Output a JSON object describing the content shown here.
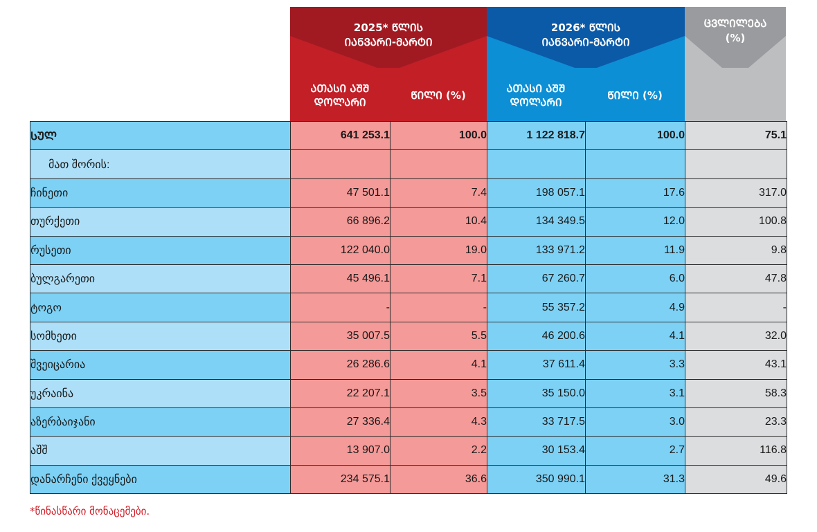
{
  "colors": {
    "red_header": "#c21f27",
    "red_header_dark": "#a11a22",
    "blue_header": "#0d8fd6",
    "blue_header_dark": "#0a5aa8",
    "grey_header": "#bdbec0",
    "grey_header_dark": "#9a9b9e",
    "footnote": "#d0202a"
  },
  "header": {
    "period_2025": [
      "2025* ᲬᲚᲘᲡ",
      "ᲘᲐᲜᲕᲐᲠᲘ-ᲛᲐᲠᲢᲘ"
    ],
    "period_2026": [
      "2026* ᲬᲚᲘᲡ",
      "ᲘᲐᲜᲕᲐᲠᲘ-ᲛᲐᲠᲢᲘ"
    ],
    "change": [
      "ᲪᲕᲚᲘᲚᲔᲑᲐ",
      "(%)"
    ],
    "value_col": [
      "ᲐᲗᲐᲡᲘ ᲐᲨᲨ",
      "ᲓᲝᲚᲐᲠᲘ"
    ],
    "share_col": "ᲬᲘᲚᲘ (%)"
  },
  "rows": [
    {
      "label": "ᲡᲣᲚ",
      "v2025": "641 253.1",
      "s2025": "100.0",
      "v2026": "1 122 818.7",
      "s2026": "100.0",
      "change": "75.1"
    },
    {
      "label": "მათ შორის:",
      "v2025": "",
      "s2025": "",
      "v2026": "",
      "s2026": "",
      "change": ""
    },
    {
      "label": "ჩინეთი",
      "v2025": "47 501.1",
      "s2025": "7.4",
      "v2026": "198 057.1",
      "s2026": "17.6",
      "change": "317.0"
    },
    {
      "label": "თურქეთი",
      "v2025": "66 896.2",
      "s2025": "10.4",
      "v2026": "134 349.5",
      "s2026": "12.0",
      "change": "100.8"
    },
    {
      "label": "რუსეთი",
      "v2025": "122 040.0",
      "s2025": "19.0",
      "v2026": "133 971.2",
      "s2026": "11.9",
      "change": "9.8"
    },
    {
      "label": "ბულგარეთი",
      "v2025": "45 496.1",
      "s2025": "7.1",
      "v2026": "67 260.7",
      "s2026": "6.0",
      "change": "47.8"
    },
    {
      "label": "ტოგო",
      "v2025": "-",
      "s2025": "-",
      "v2026": "55 357.2",
      "s2026": "4.9",
      "change": "-"
    },
    {
      "label": "სომხეთი",
      "v2025": "35 007.5",
      "s2025": "5.5",
      "v2026": "46 200.6",
      "s2026": "4.1",
      "change": "32.0"
    },
    {
      "label": "შვეიცარია",
      "v2025": "26 286.6",
      "s2025": "4.1",
      "v2026": "37 611.4",
      "s2026": "3.3",
      "change": "43.1"
    },
    {
      "label": "უკრაინა",
      "v2025": "22 207.1",
      "s2025": "3.5",
      "v2026": "35 150.0",
      "s2026": "3.1",
      "change": "58.3"
    },
    {
      "label": "აზერბაიჯანი",
      "v2025": "27 336.4",
      "s2025": "4.3",
      "v2026": "33 717.5",
      "s2026": "3.0",
      "change": "23.3"
    },
    {
      "label": "აშშ",
      "v2025": "13 907.0",
      "s2025": "2.2",
      "v2026": "30 153.4",
      "s2026": "2.7",
      "change": "116.8"
    },
    {
      "label": "დანარჩენი ქვეყნები",
      "v2025": "234 575.1",
      "s2025": "36.6",
      "v2026": "350 990.1",
      "s2026": "31.3",
      "change": "49.6"
    }
  ],
  "footnote": "*წინასწარი მონაცემები."
}
